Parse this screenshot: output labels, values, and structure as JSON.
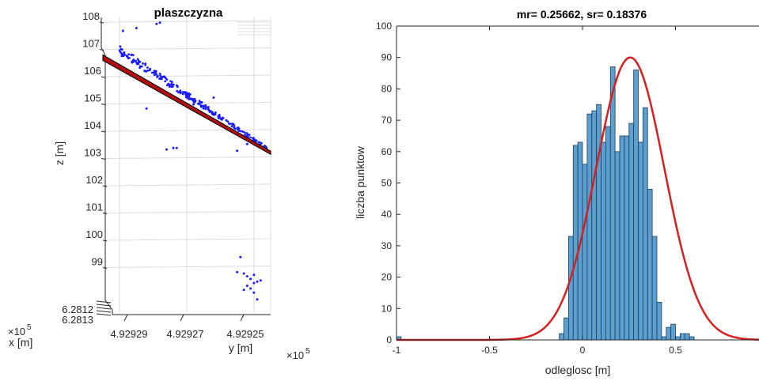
{
  "chart_data": [
    {
      "type": "scatter",
      "projection": "3d",
      "title": "plaszczyzna",
      "xlabel": "x [m]",
      "ylabel": "y [m]",
      "zlabel": "z [m]",
      "x_exponent": "×10^5",
      "y_exponent": "×10^5",
      "x_ticks": [
        "6.2812",
        "6.2813"
      ],
      "y_ticks": [
        "4.92929",
        "4.92927",
        "4.92925"
      ],
      "z_ticks": [
        "99",
        "100",
        "101",
        "102",
        "103",
        "104",
        "105",
        "106",
        "107",
        "108"
      ],
      "z_tick_values": [
        99,
        100,
        101,
        102,
        103,
        104,
        105,
        106,
        107,
        108
      ],
      "zlim": [
        98,
        108
      ],
      "ylim_reversed": [
        4.929295,
        4.929245
      ],
      "grid": true,
      "colors": {
        "points": "#1a1aff",
        "plane": "#b01010",
        "plane_edge": "#000000",
        "axes": "#262626",
        "grid": "#dcdcdc"
      },
      "plane": {
        "from": {
          "y": 4.929295,
          "z": 106.45
        },
        "to": {
          "y": 4.929245,
          "z": 102.95
        }
      },
      "main_cloud": {
        "y_start": 4.92929,
        "y_end": 4.929245,
        "z_start": 106.7,
        "z_end": 103.05,
        "count": 240
      },
      "outliers": [
        {
          "y": 4.929289,
          "z": 107.45
        },
        {
          "y": 4.929285,
          "z": 107.55
        },
        {
          "y": 4.929279,
          "z": 107.7
        },
        {
          "y": 4.929278,
          "z": 107.75
        },
        {
          "y": 4.929276,
          "z": 103.1
        },
        {
          "y": 4.929274,
          "z": 103.15
        },
        {
          "y": 4.929273,
          "z": 103.15
        },
        {
          "y": 4.929255,
          "z": 103.05
        },
        {
          "y": 4.929252,
          "z": 103.3
        },
        {
          "y": 4.929282,
          "z": 104.6
        },
        {
          "y": 4.929268,
          "z": 104.75
        },
        {
          "y": 4.929262,
          "z": 105.0
        }
      ],
      "low_cluster": [
        {
          "y": 4.929254,
          "z": 99.15
        },
        {
          "y": 4.929253,
          "z": 98.55
        },
        {
          "y": 4.929252,
          "z": 98.45
        },
        {
          "y": 4.929251,
          "z": 98.35
        },
        {
          "y": 4.92925,
          "z": 98.2
        },
        {
          "y": 4.929249,
          "z": 98.25
        },
        {
          "y": 4.929252,
          "z": 98.1
        },
        {
          "y": 4.92925,
          "z": 97.85
        },
        {
          "y": 4.929249,
          "z": 97.6
        },
        {
          "y": 4.929255,
          "z": 98.6
        },
        {
          "y": 4.929248,
          "z": 98.3
        },
        {
          "y": 4.929253,
          "z": 97.95
        },
        {
          "y": 4.92925,
          "z": 98.5
        },
        {
          "y": 4.929251,
          "z": 98.0
        }
      ]
    },
    {
      "type": "bar",
      "subtype": "histogram",
      "title": "mr= 0.25662, sr= 0.18376",
      "xlabel": "odleglosc [m]",
      "ylabel": "liczba punktow",
      "xlim": [
        -1,
        1
      ],
      "ylim": [
        0,
        100
      ],
      "x_ticks": [
        -1,
        -0.5,
        0,
        0.5
      ],
      "x_tick_labels": [
        "-1",
        "-0.5",
        "0",
        "0.5"
      ],
      "y_ticks": [
        0,
        10,
        20,
        30,
        40,
        50,
        60,
        70,
        80,
        90,
        100
      ],
      "y_tick_labels": [
        "0",
        "10",
        "20",
        "30",
        "40",
        "50",
        "60",
        "70",
        "80",
        "90",
        "100"
      ],
      "grid": false,
      "bar_color": "#5a9fcf",
      "curve_color": "#d81e1e",
      "bin_width": 0.025,
      "bins": [
        {
          "x": -1.0,
          "count": 1
        },
        {
          "x": -0.125,
          "count": 2
        },
        {
          "x": -0.1,
          "count": 7
        },
        {
          "x": -0.075,
          "count": 33
        },
        {
          "x": -0.05,
          "count": 62
        },
        {
          "x": -0.025,
          "count": 63
        },
        {
          "x": 0.0,
          "count": 56
        },
        {
          "x": 0.025,
          "count": 72
        },
        {
          "x": 0.05,
          "count": 73
        },
        {
          "x": 0.075,
          "count": 75
        },
        {
          "x": 0.1,
          "count": 63
        },
        {
          "x": 0.125,
          "count": 68
        },
        {
          "x": 0.15,
          "count": 87
        },
        {
          "x": 0.175,
          "count": 60
        },
        {
          "x": 0.2,
          "count": 65
        },
        {
          "x": 0.225,
          "count": 65
        },
        {
          "x": 0.25,
          "count": 69
        },
        {
          "x": 0.275,
          "count": 86
        },
        {
          "x": 0.3,
          "count": 63
        },
        {
          "x": 0.325,
          "count": 74
        },
        {
          "x": 0.35,
          "count": 48
        },
        {
          "x": 0.375,
          "count": 33
        },
        {
          "x": 0.4,
          "count": 12
        },
        {
          "x": 0.425,
          "count": 1
        },
        {
          "x": 0.45,
          "count": 4
        },
        {
          "x": 0.475,
          "count": 5
        },
        {
          "x": 0.5,
          "count": 1
        },
        {
          "x": 0.525,
          "count": 2
        },
        {
          "x": 0.55,
          "count": 2
        },
        {
          "x": 0.575,
          "count": 1
        }
      ],
      "normal_curve": {
        "mean": 0.25662,
        "sd": 0.18376,
        "peak": 90
      }
    }
  ]
}
